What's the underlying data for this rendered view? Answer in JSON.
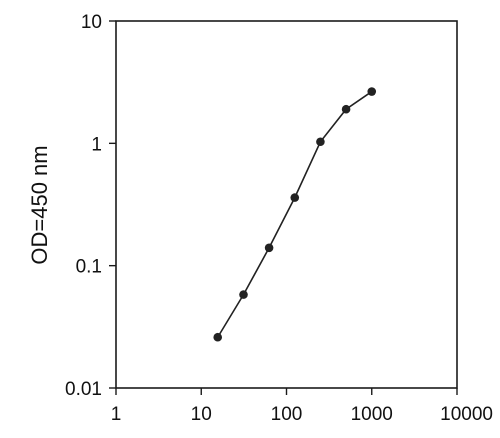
{
  "chart_data": {
    "type": "line",
    "title": "",
    "xlabel": "",
    "ylabel": "OD=450 nm",
    "x_scale": "log",
    "y_scale": "log",
    "xlim": [
      1,
      10000
    ],
    "ylim": [
      0.01,
      10
    ],
    "x_ticks": [
      1,
      10,
      100,
      1000,
      10000
    ],
    "x_tick_labels": [
      "1",
      "10",
      "100",
      "1000",
      "10000"
    ],
    "y_ticks": [
      0.01,
      0.1,
      1,
      10
    ],
    "y_tick_labels": [
      "0.01",
      "0.1",
      "1",
      "10"
    ],
    "grid": false,
    "legend": "none",
    "series": [
      {
        "x": [
          15.6,
          31.3,
          62.5,
          125,
          250,
          500,
          1000
        ],
        "y": [
          0.026,
          0.058,
          0.14,
          0.36,
          1.03,
          1.9,
          2.65
        ],
        "color": "#222222",
        "marker": "circle"
      }
    ]
  }
}
